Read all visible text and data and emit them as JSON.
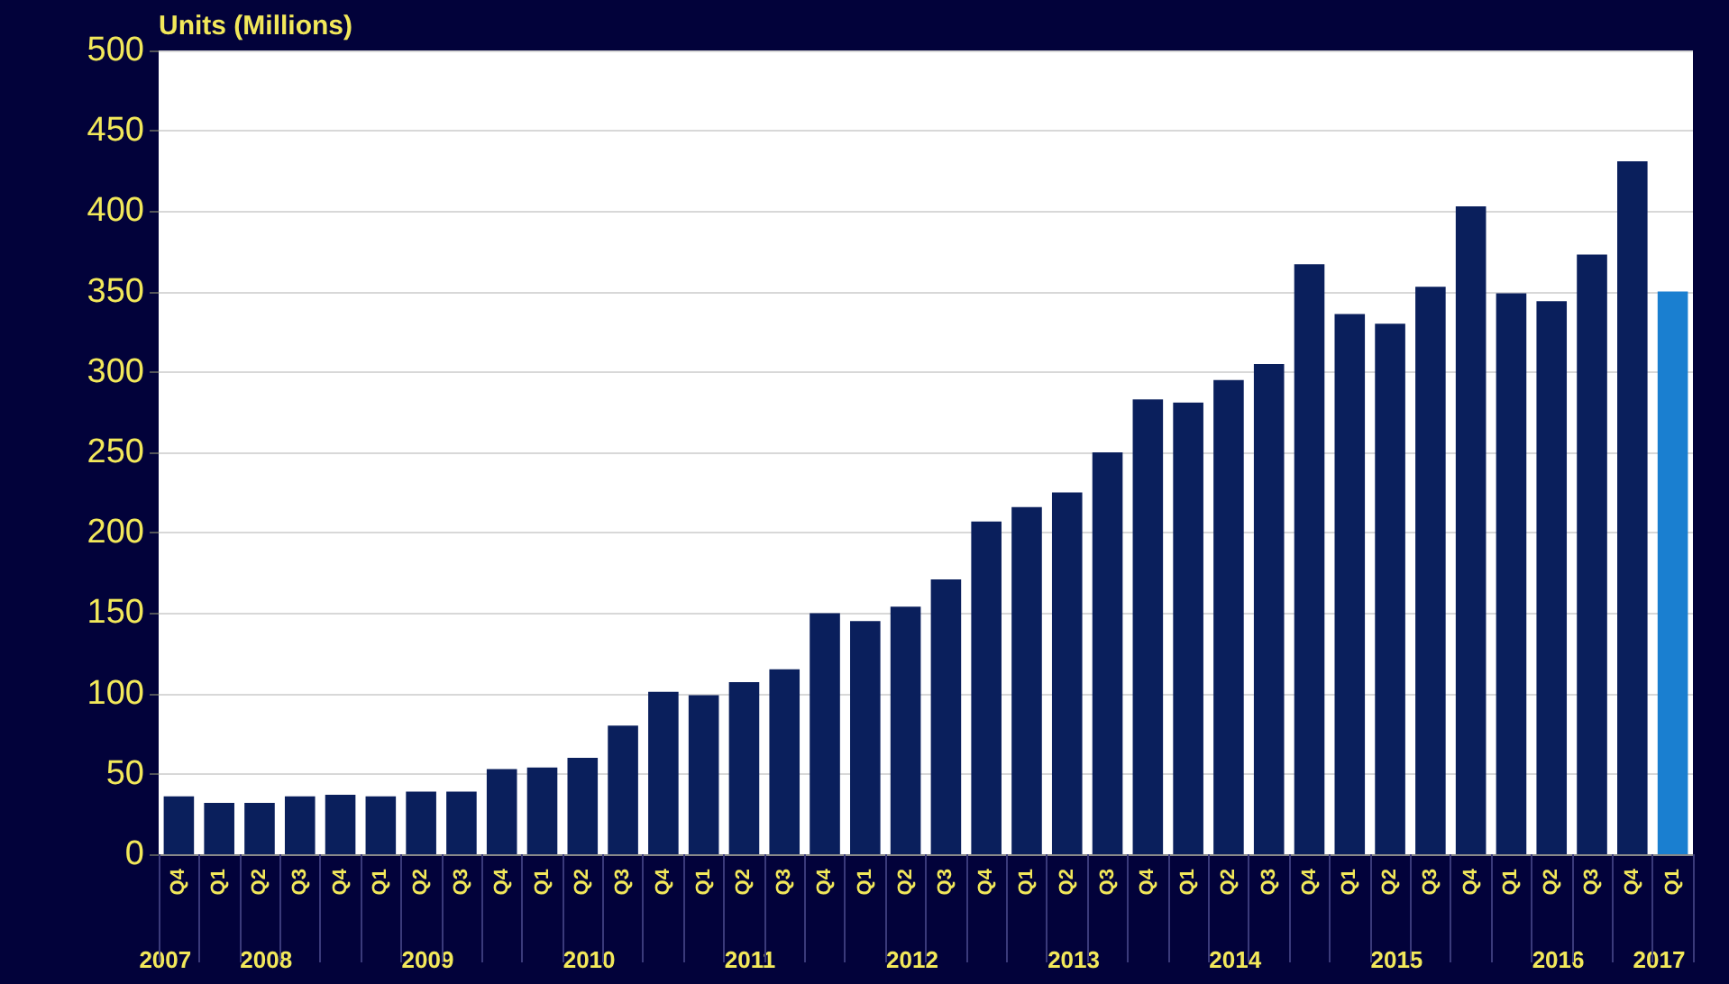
{
  "chart_data": {
    "type": "bar",
    "ylabel": "Units (Millions)",
    "categories": [
      "Q4",
      "Q1",
      "Q2",
      "Q3",
      "Q4",
      "Q1",
      "Q2",
      "Q3",
      "Q4",
      "Q1",
      "Q2",
      "Q3",
      "Q4",
      "Q1",
      "Q2",
      "Q3",
      "Q4",
      "Q1",
      "Q2",
      "Q3",
      "Q4",
      "Q1",
      "Q2",
      "Q3",
      "Q4",
      "Q1",
      "Q2",
      "Q3",
      "Q4",
      "Q1",
      "Q2",
      "Q3",
      "Q4",
      "Q1",
      "Q2",
      "Q3",
      "Q4",
      "Q1"
    ],
    "values": [
      36,
      32,
      32,
      36,
      37,
      36,
      39,
      39,
      53,
      54,
      60,
      80,
      101,
      99,
      107,
      115,
      150,
      145,
      154,
      171,
      207,
      216,
      225,
      250,
      283,
      281,
      295,
      305,
      367,
      336,
      330,
      353,
      403,
      349,
      344,
      373,
      431,
      350
    ],
    "colors": [
      "#0a1f5c",
      "#0a1f5c",
      "#0a1f5c",
      "#0a1f5c",
      "#0a1f5c",
      "#0a1f5c",
      "#0a1f5c",
      "#0a1f5c",
      "#0a1f5c",
      "#0a1f5c",
      "#0a1f5c",
      "#0a1f5c",
      "#0a1f5c",
      "#0a1f5c",
      "#0a1f5c",
      "#0a1f5c",
      "#0a1f5c",
      "#0a1f5c",
      "#0a1f5c",
      "#0a1f5c",
      "#0a1f5c",
      "#0a1f5c",
      "#0a1f5c",
      "#0a1f5c",
      "#0a1f5c",
      "#0a1f5c",
      "#0a1f5c",
      "#0a1f5c",
      "#0a1f5c",
      "#0a1f5c",
      "#0a1f5c",
      "#0a1f5c",
      "#0a1f5c",
      "#0a1f5c",
      "#0a1f5c",
      "#0a1f5c",
      "#0a1f5c",
      "#1a7fd0"
    ],
    "ylim": [
      0,
      500
    ],
    "yticks": [
      0,
      50,
      100,
      150,
      200,
      250,
      300,
      350,
      400,
      450,
      500
    ],
    "grid": "y",
    "annotations": [
      "2007",
      "2008",
      "2009",
      "2010",
      "2011",
      "2012",
      "2013",
      "2014",
      "2015",
      "2016",
      "2017"
    ]
  }
}
